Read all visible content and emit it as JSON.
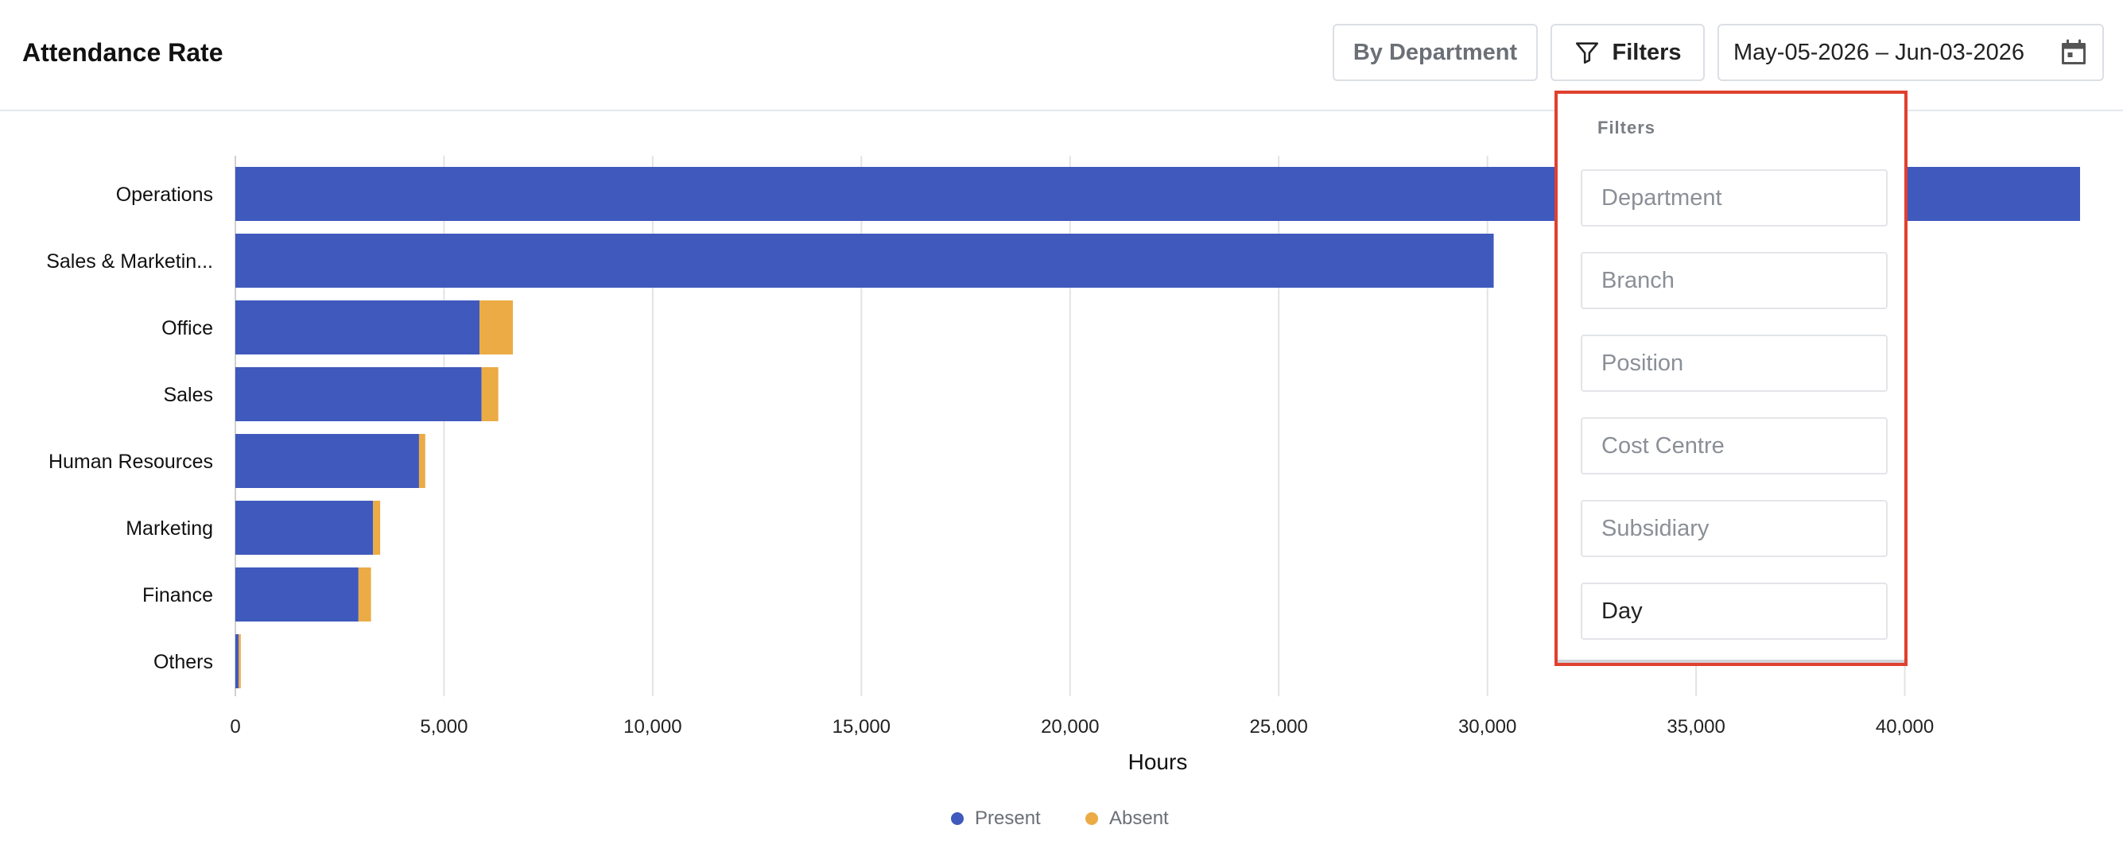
{
  "header": {
    "title": "Attendance Rate",
    "group_by_label": "By Department",
    "filters_label": "Filters",
    "date_range": "May-05-2026 – Jun-03-2026"
  },
  "filters_panel": {
    "heading": "Filters",
    "fields": [
      {
        "placeholder": "Department",
        "value": ""
      },
      {
        "placeholder": "Branch",
        "value": ""
      },
      {
        "placeholder": "Position",
        "value": ""
      },
      {
        "placeholder": "Cost Centre",
        "value": ""
      },
      {
        "placeholder": "Subsidiary",
        "value": ""
      },
      {
        "placeholder": "",
        "value": "Day"
      }
    ]
  },
  "colors": {
    "present": "#3f59bd",
    "absent": "#ebab45",
    "highlight": "#e0402f"
  },
  "icons": [
    "filter-icon",
    "calendar-icon"
  ],
  "chart_data": {
    "type": "bar",
    "orientation": "horizontal",
    "stacked": true,
    "categories": [
      "Operations",
      "Sales & Marketin...",
      "Office",
      "Sales",
      "Human Resources",
      "Marketing",
      "Finance",
      "Others"
    ],
    "series": [
      {
        "name": "Present",
        "values": [
          44200,
          30150,
          5850,
          5900,
          4400,
          3300,
          2950,
          80
        ]
      },
      {
        "name": "Absent",
        "values": [
          0,
          0,
          800,
          400,
          150,
          170,
          300,
          50
        ]
      }
    ],
    "xlabel": "Hours",
    "xlim": [
      0,
      44200
    ],
    "xticks": [
      0,
      5000,
      10000,
      15000,
      20000,
      25000,
      30000,
      35000,
      40000
    ],
    "xtick_labels": [
      "0",
      "5,000",
      "10,000",
      "15,000",
      "20,000",
      "25,000",
      "30,000",
      "35,000",
      "40,000"
    ],
    "grid": true,
    "legend_position": "bottom-center"
  }
}
